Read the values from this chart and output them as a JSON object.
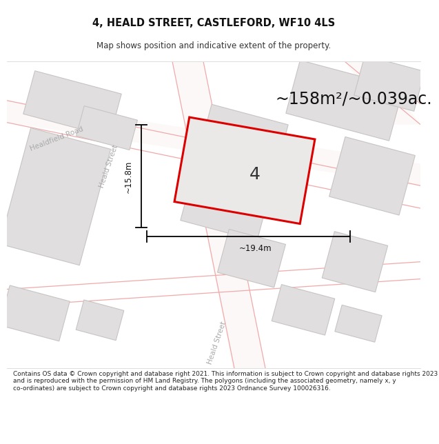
{
  "title": "4, HEALD STREET, CASTLEFORD, WF10 4LS",
  "subtitle": "Map shows position and indicative extent of the property.",
  "area_text": "~158m²/~0.039ac.",
  "property_number": "4",
  "width_label": "~19.4m",
  "height_label": "~15.8m",
  "footer": "Contains OS data © Crown copyright and database right 2021. This information is subject to Crown copyright and database rights 2023 and is reproduced with the permission of HM Land Registry. The polygons (including the associated geometry, namely x, y co-ordinates) are subject to Crown copyright and database rights 2023 Ordnance Survey 100026316.",
  "map_bg": "#f7f5f5",
  "block_color": "#e0dede",
  "block_edge_color": "#c8c4c4",
  "road_fill": "#fdf8f8",
  "road_line_color": "#f0aaaa",
  "property_fill": "#ebe8e8",
  "property_edge": "#dd0000",
  "title_color": "#111111",
  "subtitle_color": "#333333",
  "footer_color": "#222222",
  "street_label_color": "#aaaaaa",
  "road_label_color": "#aaaaaa"
}
